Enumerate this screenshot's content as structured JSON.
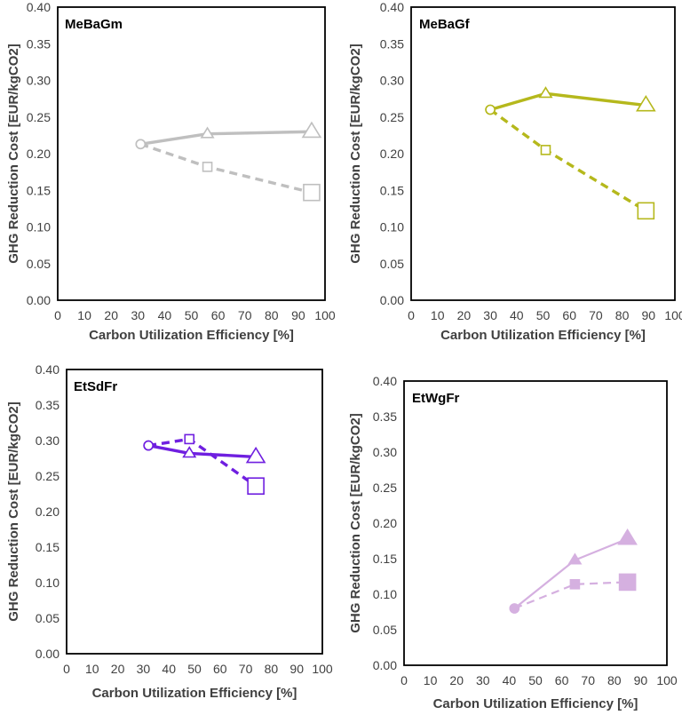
{
  "chart_data": [
    {
      "type": "line",
      "title": "MeBaGm",
      "xlabel": "Carbon Utilization Efficiency [%]",
      "ylabel": "GHG Reduction Cost [EUR/kgCO2]",
      "xlim": [
        0,
        100
      ],
      "ylim": [
        0,
        0.4
      ],
      "xticks": [
        "0",
        "10",
        "20",
        "30",
        "40",
        "50",
        "60",
        "70",
        "80",
        "90",
        "100"
      ],
      "yticks": [
        "0.00",
        "0.05",
        "0.10",
        "0.15",
        "0.20",
        "0.25",
        "0.30",
        "0.35",
        "0.40"
      ],
      "color": "#bfbfbf",
      "marker_style": "hollow",
      "line_width": "thick",
      "series": [
        {
          "name": "solid-triangle-path",
          "dash": "solid",
          "points": [
            {
              "x": 31,
              "y": 0.213,
              "m": "circle"
            },
            {
              "x": 56,
              "y": 0.227,
              "m": "triangle"
            },
            {
              "x": 95,
              "y": 0.23,
              "m": "triangle-large"
            }
          ]
        },
        {
          "name": "dashed-square-path",
          "dash": "dashed",
          "points": [
            {
              "x": 31,
              "y": 0.213,
              "m": "circle"
            },
            {
              "x": 56,
              "y": 0.182,
              "m": "square"
            },
            {
              "x": 95,
              "y": 0.147,
              "m": "square-large"
            }
          ]
        }
      ]
    },
    {
      "type": "line",
      "title": "MeBaGf",
      "xlabel": "Carbon Utilization Efficiency [%]",
      "ylabel": "GHG Reduction Cost [EUR/kgCO2]",
      "xlim": [
        0,
        100
      ],
      "ylim": [
        0,
        0.4
      ],
      "xticks": [
        "0",
        "10",
        "20",
        "30",
        "40",
        "50",
        "60",
        "70",
        "80",
        "90",
        "100"
      ],
      "yticks": [
        "0.00",
        "0.05",
        "0.10",
        "0.15",
        "0.20",
        "0.25",
        "0.30",
        "0.35",
        "0.40"
      ],
      "color": "#b5b81c",
      "marker_style": "hollow",
      "line_width": "thick",
      "series": [
        {
          "name": "solid-triangle-path",
          "dash": "solid",
          "points": [
            {
              "x": 30,
              "y": 0.26,
              "m": "circle"
            },
            {
              "x": 51,
              "y": 0.282,
              "m": "triangle"
            },
            {
              "x": 89,
              "y": 0.266,
              "m": "triangle-large"
            }
          ]
        },
        {
          "name": "dashed-square-path",
          "dash": "dashed",
          "points": [
            {
              "x": 30,
              "y": 0.26,
              "m": "circle"
            },
            {
              "x": 51,
              "y": 0.205,
              "m": "square"
            },
            {
              "x": 89,
              "y": 0.122,
              "m": "square-large"
            }
          ]
        }
      ]
    },
    {
      "type": "line",
      "title": "EtSdFr",
      "xlabel": "Carbon Utilization Efficiency [%]",
      "ylabel": "GHG Reduction Cost [EUR/kgCO2]",
      "xlim": [
        0,
        100
      ],
      "ylim": [
        0,
        0.4
      ],
      "xticks": [
        "0",
        "10",
        "20",
        "30",
        "40",
        "50",
        "60",
        "70",
        "80",
        "90",
        "100"
      ],
      "yticks": [
        "0.00",
        "0.05",
        "0.10",
        "0.15",
        "0.20",
        "0.25",
        "0.30",
        "0.35",
        "0.40"
      ],
      "color": "#6f1fe0",
      "marker_style": "hollow",
      "line_width": "thick",
      "series": [
        {
          "name": "solid-triangle-path",
          "dash": "solid",
          "points": [
            {
              "x": 32,
              "y": 0.293,
              "m": "circle"
            },
            {
              "x": 48,
              "y": 0.282,
              "m": "triangle"
            },
            {
              "x": 74,
              "y": 0.277,
              "m": "triangle-large"
            }
          ]
        },
        {
          "name": "dashed-square-path",
          "dash": "dashed",
          "points": [
            {
              "x": 32,
              "y": 0.293,
              "m": "circle"
            },
            {
              "x": 48,
              "y": 0.302,
              "m": "square"
            },
            {
              "x": 74,
              "y": 0.236,
              "m": "square-large"
            }
          ]
        }
      ]
    },
    {
      "type": "line",
      "title": "EtWgFr",
      "xlabel": "Carbon Utilization Efficiency [%]",
      "ylabel": "GHG Reduction Cost [EUR/kgCO2]",
      "xlim": [
        0,
        100
      ],
      "ylim": [
        0,
        0.4
      ],
      "xticks": [
        "0",
        "10",
        "20",
        "30",
        "40",
        "50",
        "60",
        "70",
        "80",
        "90",
        "100"
      ],
      "yticks": [
        "0.00",
        "0.05",
        "0.10",
        "0.15",
        "0.20",
        "0.25",
        "0.30",
        "0.35",
        "0.40"
      ],
      "color": "#d5b0e0",
      "marker_style": "filled",
      "line_width": "thin",
      "series": [
        {
          "name": "solid-triangle-path",
          "dash": "solid",
          "points": [
            {
              "x": 42,
              "y": 0.08,
              "m": "circle"
            },
            {
              "x": 65,
              "y": 0.148,
              "m": "triangle"
            },
            {
              "x": 85,
              "y": 0.178,
              "m": "triangle-large"
            }
          ]
        },
        {
          "name": "dashed-square-path",
          "dash": "dashed",
          "points": [
            {
              "x": 42,
              "y": 0.08,
              "m": "circle"
            },
            {
              "x": 65,
              "y": 0.114,
              "m": "square"
            },
            {
              "x": 85,
              "y": 0.117,
              "m": "square-large"
            }
          ]
        }
      ]
    }
  ]
}
